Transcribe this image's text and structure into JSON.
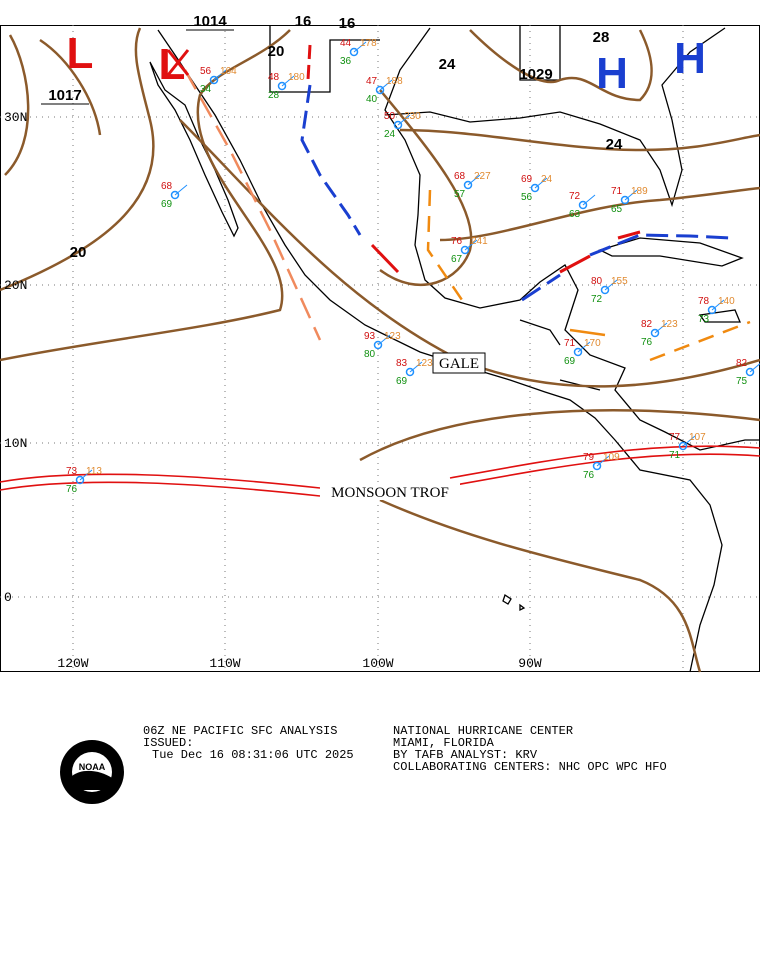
{
  "map": {
    "latitude_labels": [
      "30N",
      "20N",
      "10N",
      "0"
    ],
    "longitude_labels": [
      "120W",
      "110W",
      "100W",
      "90W"
    ],
    "isobar_labels": [
      "1014",
      "16",
      "16",
      "20",
      "24",
      "1029",
      "28",
      "24",
      "1017",
      "20"
    ],
    "pressure_centers": [
      "L",
      "L",
      "H",
      "H"
    ],
    "feature_labels": [
      "GALE",
      "MONSOON TROF"
    ],
    "stations": [
      {
        "temp": "93",
        "pressure": "123",
        "dew": "80"
      },
      {
        "temp": "83",
        "pressure": "123",
        "dew": "69"
      },
      {
        "temp": "68",
        "pressure": "227",
        "dew": "57"
      },
      {
        "temp": "69",
        "pressure": "24",
        "dew": "56"
      },
      {
        "temp": "72",
        "pressure": "",
        "dew": "63"
      },
      {
        "temp": "71",
        "pressure": "189",
        "dew": "65"
      },
      {
        "temp": "76",
        "pressure": "241",
        "dew": "67"
      },
      {
        "temp": "80",
        "pressure": "155",
        "dew": "72"
      },
      {
        "temp": "82",
        "pressure": "123",
        "dew": "76"
      },
      {
        "temp": "78",
        "pressure": "140",
        "dew": "73"
      },
      {
        "temp": "82",
        "pressure": "",
        "dew": "75"
      },
      {
        "temp": "71",
        "pressure": "170",
        "dew": "69"
      },
      {
        "temp": "73",
        "pressure": "113",
        "dew": "76"
      },
      {
        "temp": "48",
        "pressure": "180",
        "dew": "28"
      },
      {
        "temp": "56",
        "pressure": "164",
        "dew": "34"
      },
      {
        "temp": "68",
        "pressure": "",
        "dew": "69"
      },
      {
        "temp": "44",
        "pressure": "178",
        "dew": "36"
      },
      {
        "temp": "47",
        "pressure": "188",
        "dew": "40"
      },
      {
        "temp": "50",
        "pressure": "230",
        "dew": "24"
      },
      {
        "temp": "79",
        "pressure": "109",
        "dew": "76"
      },
      {
        "temp": "77",
        "pressure": "107",
        "dew": "71"
      }
    ]
  },
  "footer": {
    "left": [
      "06Z NE PACIFIC SFC ANALYSIS",
      "ISSUED:",
      "Tue Dec 16 08:31:06 UTC 2025"
    ],
    "right": [
      "NATIONAL HURRICANE CENTER",
      "MIAMI, FLORIDA",
      "BY TAFB ANALYST: KRV",
      "COLLABORATING CENTERS: NHC OPC WPC HFO"
    ],
    "logo": "NOAA"
  }
}
